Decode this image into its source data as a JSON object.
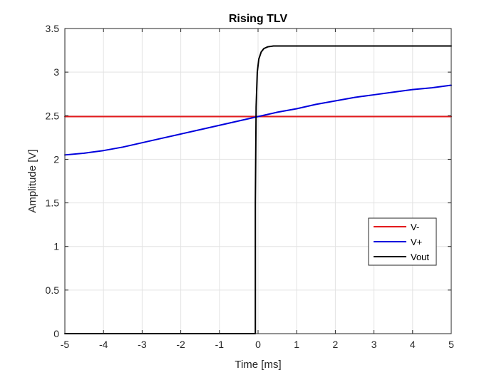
{
  "chart_data": {
    "type": "line",
    "title": "Rising TLV",
    "xlabel": "Time [ms]",
    "ylabel": "Amplitude [V]",
    "xlim": [
      -5,
      5
    ],
    "ylim": [
      0,
      3.5
    ],
    "xticks": [
      "-5",
      "-4",
      "-3",
      "-2",
      "-1",
      "0",
      "1",
      "2",
      "3",
      "4",
      "5"
    ],
    "yticks": [
      "0",
      "0.5",
      "1",
      "1.5",
      "2",
      "2.5",
      "3",
      "3.5"
    ],
    "grid": true,
    "legend_position": "lower-right",
    "series": [
      {
        "name": "V-",
        "color": "#e31a1c",
        "x": [
          -5,
          -2.5,
          0,
          2.5,
          5
        ],
        "y": [
          2.49,
          2.49,
          2.49,
          2.49,
          2.49
        ]
      },
      {
        "name": "V+",
        "color": "#0000dd",
        "x": [
          -5,
          -4.5,
          -4,
          -3.5,
          -3,
          -2.5,
          -2,
          -1.5,
          -1,
          -0.5,
          0,
          0.5,
          1,
          1.5,
          2,
          2.5,
          3,
          3.5,
          4,
          4.5,
          5
        ],
        "y": [
          2.05,
          2.07,
          2.1,
          2.14,
          2.19,
          2.24,
          2.29,
          2.34,
          2.39,
          2.44,
          2.49,
          2.54,
          2.58,
          2.63,
          2.67,
          2.71,
          2.74,
          2.77,
          2.8,
          2.82,
          2.85
        ]
      },
      {
        "name": "Vout",
        "color": "#000000",
        "x": [
          -5,
          -0.07,
          -0.07,
          -0.05,
          -0.02,
          0.02,
          0.08,
          0.15,
          0.25,
          0.4,
          1,
          5
        ],
        "y": [
          0,
          0,
          1.5,
          2.6,
          3.0,
          3.15,
          3.23,
          3.27,
          3.29,
          3.3,
          3.3,
          3.3
        ]
      }
    ]
  }
}
